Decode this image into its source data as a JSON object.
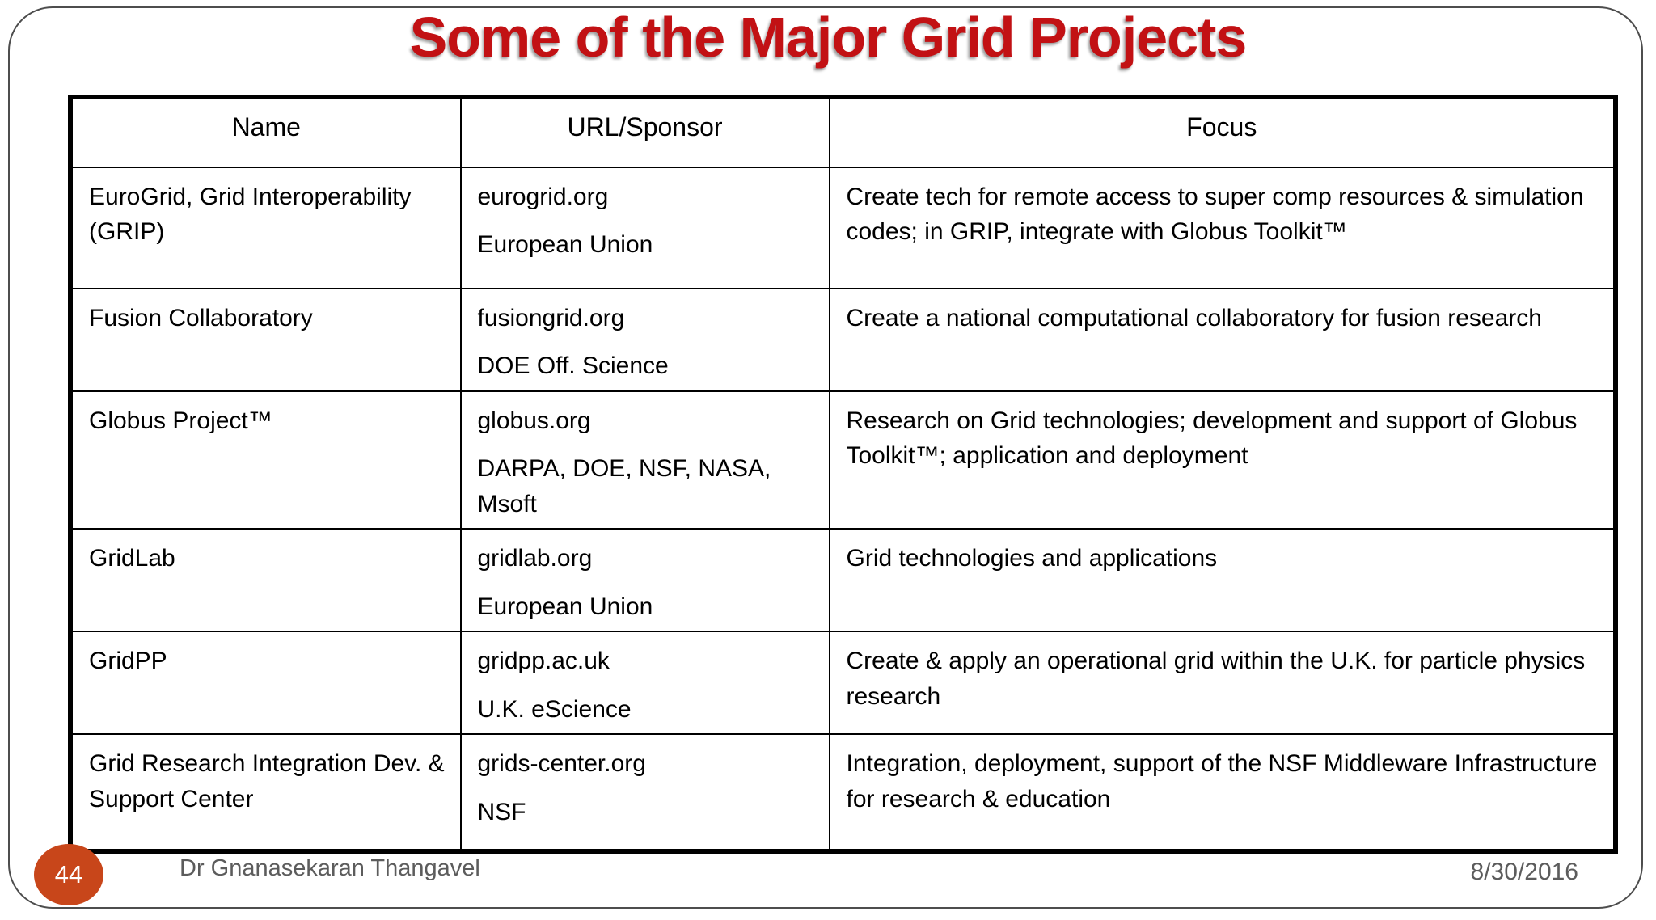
{
  "slide": {
    "title": "Some of the Major Grid Projects",
    "title_color": "#c21114",
    "page_number": "44",
    "footer_author": "Dr Gnanasekaran Thangavel",
    "footer_date": "8/30/2016",
    "badge_color": "#c8461a"
  },
  "table": {
    "headers": [
      "Name",
      "URL/Sponsor",
      "Focus"
    ],
    "rows": [
      {
        "name": "EuroGrid, Grid Interoperability (GRIP)",
        "url": "eurogrid.org",
        "sponsor": "European Union",
        "focus": "Create tech for remote access to super comp resources & simulation codes; in GRIP, integrate with Globus Toolkit™"
      },
      {
        "name": "Fusion Collaboratory",
        "url": "fusiongrid.org",
        "sponsor": "DOE Off. Science",
        "focus": "Create a national computational collaboratory for fusion research"
      },
      {
        "name": "Globus Project™",
        "url": "globus.org",
        "sponsor": "DARPA, DOE, NSF, NASA, Msoft",
        "focus": "Research on Grid technologies; development and support of Globus Toolkit™; application and deployment"
      },
      {
        "name": "GridLab",
        "url": "gridlab.org",
        "sponsor": "European Union",
        "focus": "Grid technologies and applications"
      },
      {
        "name": "GridPP",
        "url": "gridpp.ac.uk",
        "sponsor": "U.K. eScience",
        "focus": "Create & apply an operational grid within the U.K. for particle physics research"
      },
      {
        "name": "Grid Research Integration Dev. & Support Center",
        "url": "grids-center.org",
        "sponsor": "NSF",
        "focus": "Integration, deployment, support of the NSF Middleware Infrastructure for research & education"
      }
    ]
  }
}
